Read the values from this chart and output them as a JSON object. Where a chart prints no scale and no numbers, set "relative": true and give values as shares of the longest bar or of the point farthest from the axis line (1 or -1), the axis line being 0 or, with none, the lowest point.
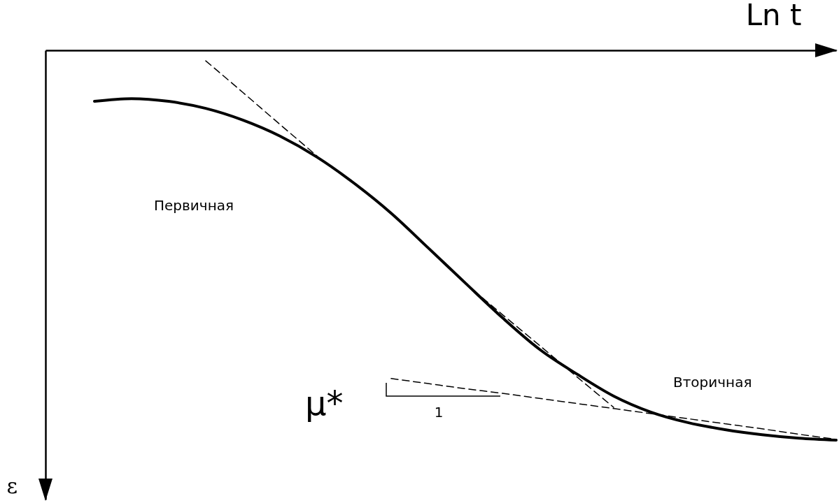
{
  "chart_data": {
    "type": "line",
    "relative": true,
    "xlabel": "Ln t",
    "ylabel": "ε",
    "grid": false,
    "categories": [
      null,
      null,
      null,
      null,
      null,
      null,
      null,
      null,
      null,
      null,
      null,
      null,
      null,
      null,
      null,
      null,
      null,
      null,
      null,
      null,
      null
    ],
    "series": [
      {
        "color": "#000000",
        "line_style": "solid",
        "values": [
          -0.131,
          -0.124,
          -0.131,
          -0.149,
          -0.179,
          -0.22,
          -0.274,
          -0.341,
          -0.418,
          -0.507,
          -0.597,
          -0.686,
          -0.767,
          -0.83,
          -0.887,
          -0.928,
          -0.955,
          -0.973,
          -0.986,
          -0.995,
          -1
        ]
      },
      {
        "color": "#000000",
        "line_style": "dashed",
        "values": [
          null,
          null,
          null,
          -0.027,
          -0.108,
          -0.19,
          -0.271,
          null,
          null,
          null,
          null,
          null,
          null,
          null,
          null,
          null,
          null,
          null,
          null,
          null,
          null
        ]
      },
      {
        "color": "#000000",
        "line_style": "dashed",
        "values": [
          null,
          null,
          null,
          null,
          null,
          null,
          null,
          null,
          null,
          null,
          -0.598,
          -0.678,
          -0.757,
          -0.837,
          -0.916,
          null,
          null,
          null,
          null,
          null,
          null
        ]
      },
      {
        "color": "#000000",
        "line_style": "dashed",
        "values": [
          null,
          null,
          null,
          null,
          null,
          null,
          null,
          null,
          -0.842,
          -0.855,
          -0.868,
          -0.88,
          -0.893,
          -0.906,
          -0.919,
          -0.932,
          -0.945,
          -0.958,
          -0.971,
          -0.985,
          -0.998
        ]
      }
    ],
    "annotations": [
      "Первичная",
      "Вторичная",
      "μ*",
      "1"
    ]
  }
}
